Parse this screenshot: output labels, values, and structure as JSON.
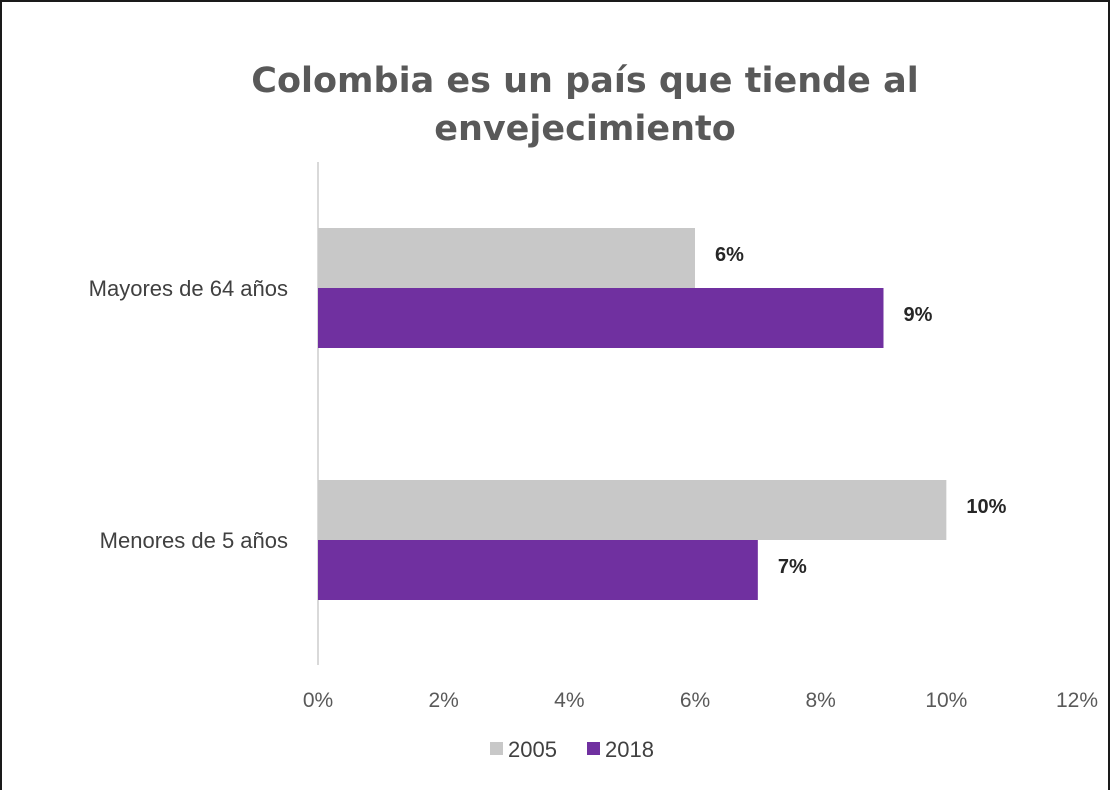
{
  "chart_data": {
    "type": "bar",
    "orientation": "horizontal",
    "title": "Colombia es un país que tiende al envejecimiento",
    "title_lines": [
      "Colombia es un país que tiende al",
      "envejecimiento"
    ],
    "categories": [
      "Mayores de 64 años",
      "Menores de 5 años"
    ],
    "series": [
      {
        "name": "2005",
        "color": "#c8c8c8",
        "values": [
          6,
          10
        ],
        "labels": [
          "6%",
          "10%"
        ]
      },
      {
        "name": "2018",
        "color": "#7030a0",
        "values": [
          9,
          7
        ],
        "labels": [
          "9%",
          "7%"
        ]
      }
    ],
    "xlim": [
      0,
      12
    ],
    "x_ticks": [
      0,
      2,
      4,
      6,
      8,
      10,
      12
    ],
    "x_tick_labels": [
      "0%",
      "2%",
      "4%",
      "6%",
      "8%",
      "10%",
      "12%"
    ],
    "xlabel": "",
    "ylabel": "",
    "grid": false,
    "legend_position": "bottom"
  }
}
